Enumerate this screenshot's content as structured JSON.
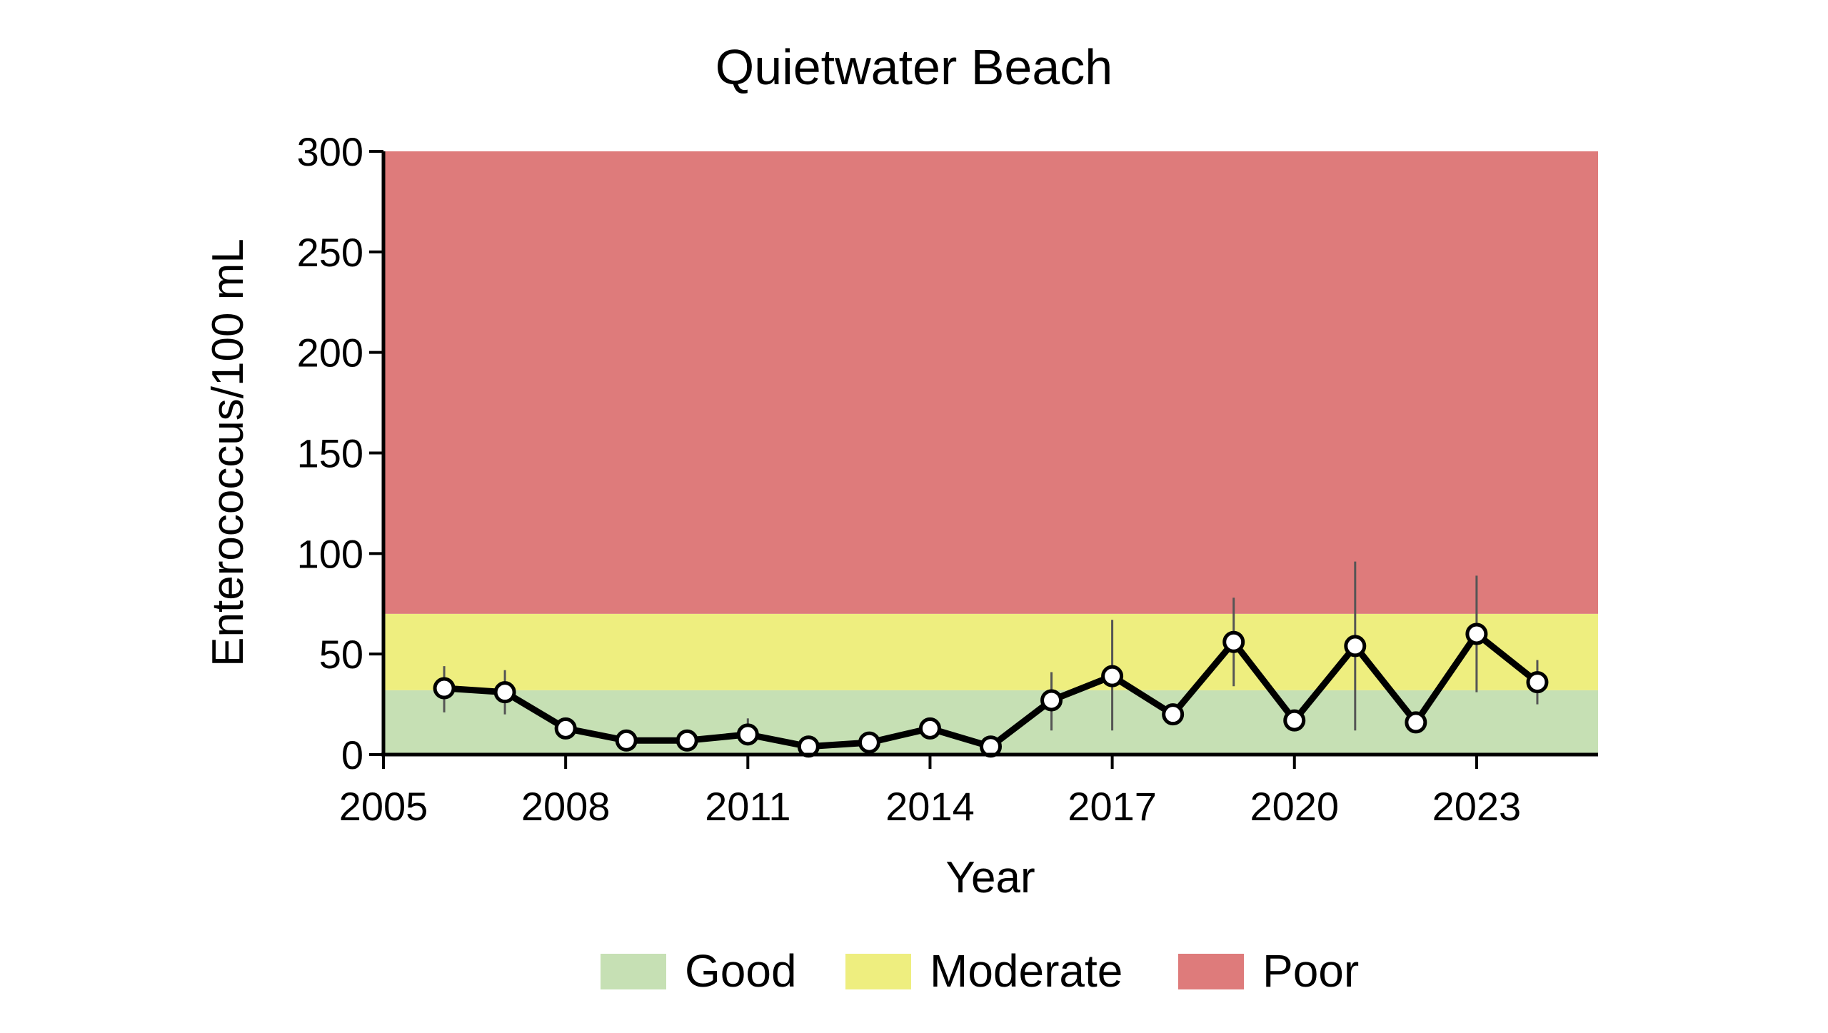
{
  "chart_data": {
    "type": "line",
    "title": "Quietwater Beach",
    "xlabel": "Year",
    "ylabel": "Enterococcus/100 mL",
    "xlim": [
      2005,
      2025
    ],
    "ylim": [
      0,
      300
    ],
    "xticks": [
      2005,
      2008,
      2011,
      2014,
      2017,
      2020,
      2023
    ],
    "yticks": [
      0,
      50,
      100,
      150,
      200,
      250,
      300
    ],
    "bands": [
      {
        "name": "Good",
        "from": 0,
        "to": 32,
        "color": "#c6e0b4"
      },
      {
        "name": "Moderate",
        "from": 32,
        "to": 70,
        "color": "#eeee7f"
      },
      {
        "name": "Poor",
        "from": 70,
        "to": 300,
        "color": "#de7b7b"
      }
    ],
    "legend_position": "bottom",
    "series": [
      {
        "x": [
          2006,
          2007,
          2008,
          2009,
          2010,
          2011,
          2012,
          2013,
          2014,
          2015,
          2016,
          2017,
          2018,
          2019,
          2020,
          2021,
          2022,
          2023,
          2024
        ],
        "y": [
          33,
          31,
          13,
          7,
          7,
          10,
          4,
          6,
          13,
          4,
          27,
          39,
          20,
          56,
          17,
          54,
          16,
          60,
          36
        ],
        "err_low": [
          21,
          20,
          10,
          5,
          5,
          7,
          2,
          4,
          10,
          2,
          12,
          12,
          16,
          34,
          13,
          12,
          12,
          31,
          25
        ],
        "err_high": [
          44,
          42,
          16,
          9,
          9,
          18,
          6,
          9,
          16,
          6,
          41,
          67,
          24,
          78,
          21,
          96,
          20,
          89,
          47
        ],
        "line_color": "#000000",
        "marker_fill": "#ffffff"
      }
    ]
  }
}
